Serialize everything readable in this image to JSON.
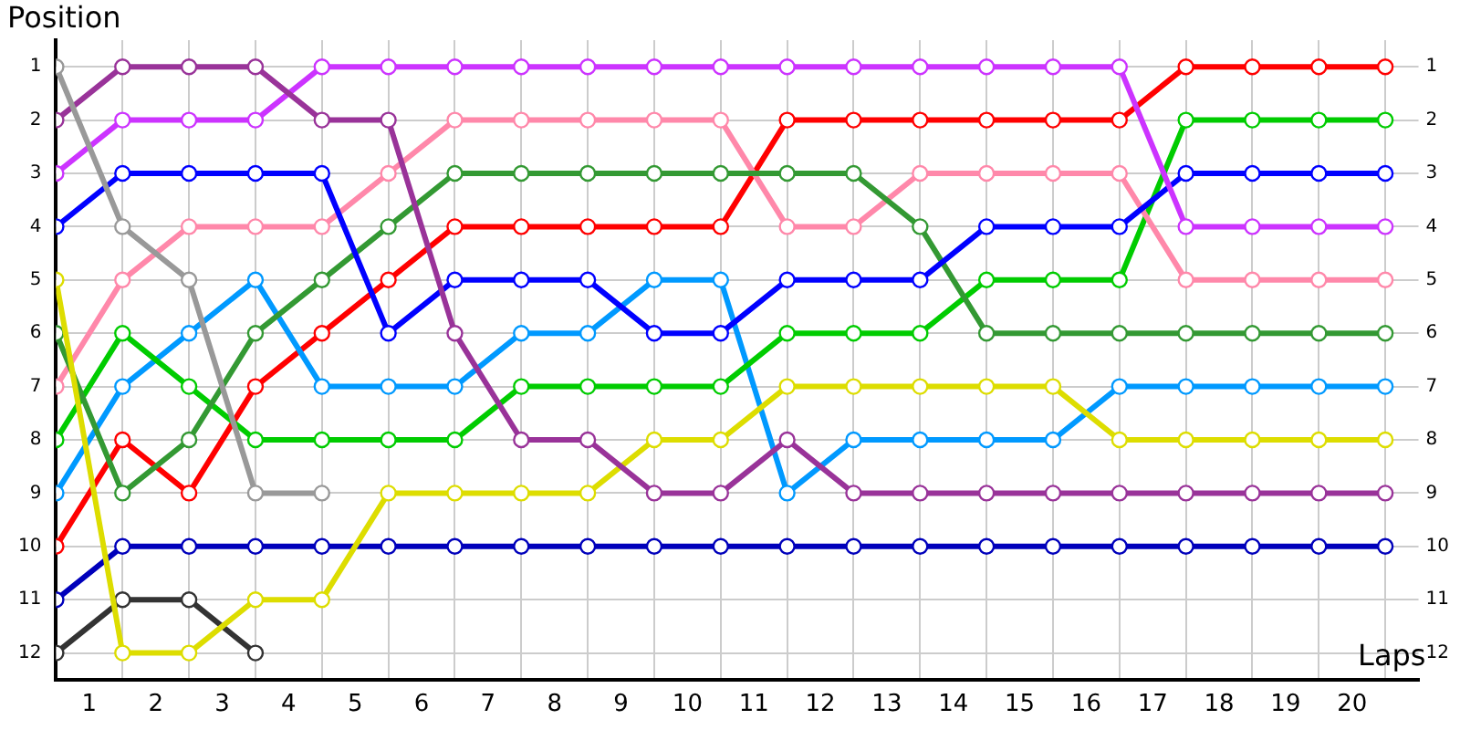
{
  "chart_data": {
    "type": "line",
    "xlabel": "Laps",
    "ylabel": "Position",
    "x": [
      0,
      1,
      2,
      3,
      4,
      5,
      6,
      7,
      8,
      9,
      10,
      11,
      12,
      13,
      14,
      15,
      16,
      17,
      18,
      19,
      20
    ],
    "xlim": [
      0,
      20.5
    ],
    "xticks": [
      {
        "value": 0,
        "label": null
      },
      {
        "value": 0.5,
        "label": "1"
      },
      {
        "value": 1,
        "label": null
      },
      {
        "value": 1.5,
        "label": "2"
      },
      {
        "value": 2,
        "label": null
      },
      {
        "value": 2.5,
        "label": "3"
      },
      {
        "value": 3,
        "label": null
      },
      {
        "value": 3.5,
        "label": "4"
      },
      {
        "value": 4,
        "label": null
      },
      {
        "value": 4.5,
        "label": "5"
      },
      {
        "value": 5,
        "label": null
      },
      {
        "value": 5.5,
        "label": "6"
      },
      {
        "value": 6,
        "label": null
      },
      {
        "value": 6.5,
        "label": "7"
      },
      {
        "value": 7,
        "label": null
      },
      {
        "value": 7.5,
        "label": "8"
      },
      {
        "value": 8,
        "label": null
      },
      {
        "value": 8.5,
        "label": "9"
      },
      {
        "value": 9,
        "label": null
      },
      {
        "value": 9.5,
        "label": "10"
      },
      {
        "value": 10,
        "label": null
      },
      {
        "value": 10.5,
        "label": "11"
      },
      {
        "value": 11,
        "label": null
      },
      {
        "value": 11.5,
        "label": "12"
      },
      {
        "value": 12,
        "label": null
      },
      {
        "value": 12.5,
        "label": "13"
      },
      {
        "value": 13,
        "label": null
      },
      {
        "value": 13.5,
        "label": "14"
      },
      {
        "value": 14,
        "label": null
      },
      {
        "value": 14.5,
        "label": "15"
      },
      {
        "value": 15,
        "label": null
      },
      {
        "value": 15.5,
        "label": "16"
      },
      {
        "value": 16,
        "label": null
      },
      {
        "value": 16.5,
        "label": "17"
      },
      {
        "value": 17,
        "label": null
      },
      {
        "value": 17.5,
        "label": "18"
      },
      {
        "value": 18,
        "label": null
      },
      {
        "value": 18.5,
        "label": "19"
      },
      {
        "value": 19,
        "label": null
      },
      {
        "value": 19.5,
        "label": "20"
      },
      {
        "value": 20,
        "label": null
      }
    ],
    "ylim": [
      12.5,
      0.5
    ],
    "yticks": [
      1,
      2,
      3,
      4,
      5,
      6,
      7,
      8,
      9,
      10,
      11,
      12
    ],
    "y2lim": [
      12.5,
      0.5
    ],
    "y2ticks": [
      1,
      2,
      3,
      4,
      5,
      6,
      7,
      8,
      9,
      10,
      11,
      12
    ],
    "grid": true,
    "legend": false,
    "marker": "circle",
    "line_style": "solid",
    "series": [
      {
        "color": "#999999",
        "values": [
          1,
          4,
          5,
          9,
          9,
          null,
          null,
          null,
          null,
          null,
          null,
          null,
          null,
          null,
          null,
          null,
          null,
          null,
          null,
          null,
          null
        ]
      },
      {
        "color": "#993399",
        "values": [
          2,
          1,
          1,
          1,
          2,
          2,
          6,
          8,
          8,
          9,
          9,
          8,
          9,
          9,
          9,
          9,
          9,
          9,
          9,
          9,
          9
        ]
      },
      {
        "color": "#cc33ff",
        "values": [
          3,
          2,
          2,
          2,
          1,
          1,
          1,
          1,
          1,
          1,
          1,
          1,
          1,
          1,
          1,
          1,
          1,
          4,
          4,
          4,
          4
        ]
      },
      {
        "color": "#0000ff",
        "values": [
          4,
          3,
          3,
          3,
          3,
          6,
          5,
          5,
          5,
          6,
          6,
          5,
          5,
          5,
          4,
          4,
          4,
          3,
          3,
          3,
          3
        ]
      },
      {
        "color": "#dddd00",
        "values": [
          5,
          12,
          12,
          11,
          11,
          9,
          9,
          9,
          9,
          8,
          8,
          7,
          7,
          7,
          7,
          7,
          8,
          8,
          8,
          8,
          8
        ]
      },
      {
        "color": "#339933",
        "values": [
          6,
          9,
          8,
          6,
          5,
          4,
          3,
          3,
          3,
          3,
          3,
          3,
          3,
          4,
          6,
          6,
          6,
          6,
          6,
          6,
          6
        ]
      },
      {
        "color": "#ff88aa",
        "values": [
          7,
          5,
          4,
          4,
          4,
          3,
          2,
          2,
          2,
          2,
          2,
          4,
          4,
          3,
          3,
          3,
          3,
          5,
          5,
          5,
          5
        ]
      },
      {
        "color": "#00cc00",
        "values": [
          8,
          6,
          7,
          8,
          8,
          8,
          8,
          7,
          7,
          7,
          7,
          6,
          6,
          6,
          5,
          5,
          5,
          2,
          2,
          2,
          2
        ]
      },
      {
        "color": "#0099ff",
        "values": [
          9,
          7,
          6,
          5,
          7,
          7,
          7,
          6,
          6,
          5,
          5,
          9,
          8,
          8,
          8,
          8,
          7,
          7,
          7,
          7,
          7
        ]
      },
      {
        "color": "#ff0000",
        "values": [
          10,
          8,
          9,
          7,
          6,
          5,
          4,
          4,
          4,
          4,
          4,
          2,
          2,
          2,
          2,
          2,
          2,
          1,
          1,
          1,
          1
        ]
      },
      {
        "color": "#0000bb",
        "values": [
          11,
          10,
          10,
          10,
          10,
          10,
          10,
          10,
          10,
          10,
          10,
          10,
          10,
          10,
          10,
          10,
          10,
          10,
          10,
          10,
          10
        ]
      },
      {
        "color": "#333333",
        "values": [
          12,
          11,
          11,
          12,
          null,
          null,
          null,
          null,
          null,
          null,
          null,
          null,
          null,
          null,
          null,
          null,
          null,
          null,
          null,
          null,
          null
        ]
      }
    ]
  }
}
